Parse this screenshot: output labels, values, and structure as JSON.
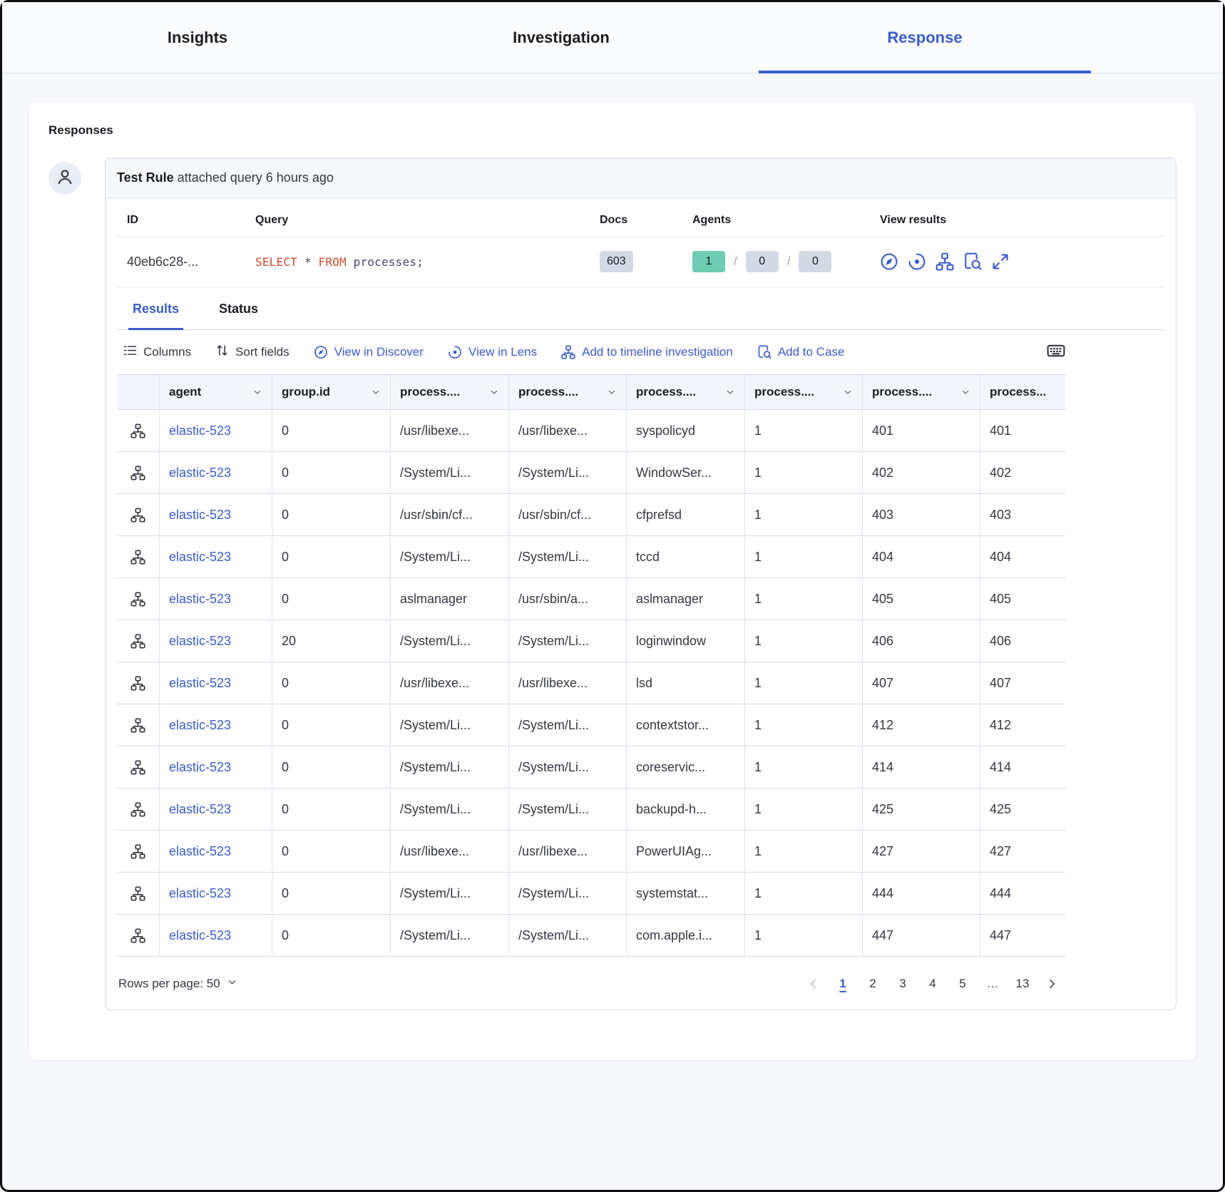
{
  "top_tabs": [
    {
      "label": "Insights",
      "active": false
    },
    {
      "label": "Investigation",
      "active": false
    },
    {
      "label": "Response",
      "active": true
    }
  ],
  "responses": {
    "heading": "Responses",
    "event": {
      "rule_name": "Test Rule",
      "action": "attached query 6 hours ago"
    },
    "meta": {
      "col_id": "ID",
      "col_query": "Query",
      "col_docs": "Docs",
      "col_agents": "Agents",
      "col_view": "View results",
      "id_value": "40eb6c28-...",
      "query_tokens": [
        {
          "text": "SELECT",
          "type": "keyword"
        },
        {
          "text": " * ",
          "type": "plain"
        },
        {
          "text": "FROM",
          "type": "keyword"
        },
        {
          "text": " processes",
          "type": "name"
        },
        {
          "text": ";",
          "type": "plain"
        }
      ],
      "docs_value": "603",
      "agents": [
        {
          "value": "1",
          "variant": "success"
        },
        {
          "value": "0",
          "variant": "default"
        },
        {
          "value": "0",
          "variant": "default"
        }
      ],
      "view_icons": [
        "discover-icon",
        "lens-icon",
        "timeline-icon",
        "case-icon",
        "expand-icon"
      ]
    },
    "result_tabs": [
      {
        "label": "Results",
        "active": true
      },
      {
        "label": "Status",
        "active": false
      }
    ],
    "toolbar": {
      "columns_label": "Columns",
      "sort_label": "Sort fields",
      "links": [
        {
          "label": "View in Discover",
          "icon": "discover-icon"
        },
        {
          "label": "View in Lens",
          "icon": "lens-icon"
        },
        {
          "label": "Add to timeline investigation",
          "icon": "timeline-icon"
        },
        {
          "label": "Add to Case",
          "icon": "case-icon"
        }
      ]
    },
    "grid": {
      "columns": [
        "agent",
        "group.id",
        "process....",
        "process....",
        "process....",
        "process....",
        "process....",
        "process..."
      ],
      "rows": [
        [
          "elastic-523",
          "0",
          "/usr/libexe...",
          "/usr/libexe...",
          "syspolicyd",
          "1",
          "401",
          "401"
        ],
        [
          "elastic-523",
          "0",
          "/System/Li...",
          "/System/Li...",
          "WindowSer...",
          "1",
          "402",
          "402"
        ],
        [
          "elastic-523",
          "0",
          "/usr/sbin/cf...",
          "/usr/sbin/cf...",
          "cfprefsd",
          "1",
          "403",
          "403"
        ],
        [
          "elastic-523",
          "0",
          "/System/Li...",
          "/System/Li...",
          "tccd",
          "1",
          "404",
          "404"
        ],
        [
          "elastic-523",
          "0",
          "aslmanager",
          "/usr/sbin/a...",
          "aslmanager",
          "1",
          "405",
          "405"
        ],
        [
          "elastic-523",
          "20",
          "/System/Li...",
          "/System/Li...",
          "loginwindow",
          "1",
          "406",
          "406"
        ],
        [
          "elastic-523",
          "0",
          "/usr/libexe...",
          "/usr/libexe...",
          "lsd",
          "1",
          "407",
          "407"
        ],
        [
          "elastic-523",
          "0",
          "/System/Li...",
          "/System/Li...",
          "contextstor...",
          "1",
          "412",
          "412"
        ],
        [
          "elastic-523",
          "0",
          "/System/Li...",
          "/System/Li...",
          "coreservic...",
          "1",
          "414",
          "414"
        ],
        [
          "elastic-523",
          "0",
          "/System/Li...",
          "/System/Li...",
          "backupd-h...",
          "1",
          "425",
          "425"
        ],
        [
          "elastic-523",
          "0",
          "/usr/libexe...",
          "/usr/libexe...",
          "PowerUIAg...",
          "1",
          "427",
          "427"
        ],
        [
          "elastic-523",
          "0",
          "/System/Li...",
          "/System/Li...",
          "systemstat...",
          "1",
          "444",
          "444"
        ],
        [
          "elastic-523",
          "0",
          "/System/Li...",
          "/System/Li...",
          "com.apple.i...",
          "1",
          "447",
          "447"
        ]
      ]
    },
    "footer": {
      "rows_per_page_label": "Rows per page: 50",
      "pages": [
        "1",
        "2",
        "3",
        "4",
        "5",
        "…",
        "13"
      ],
      "active_page": "1"
    },
    "colors": {
      "primary_blue": "#3a5ccc",
      "success_badge_bg": "#6dccb1",
      "default_badge_bg": "#d3dae6"
    }
  }
}
